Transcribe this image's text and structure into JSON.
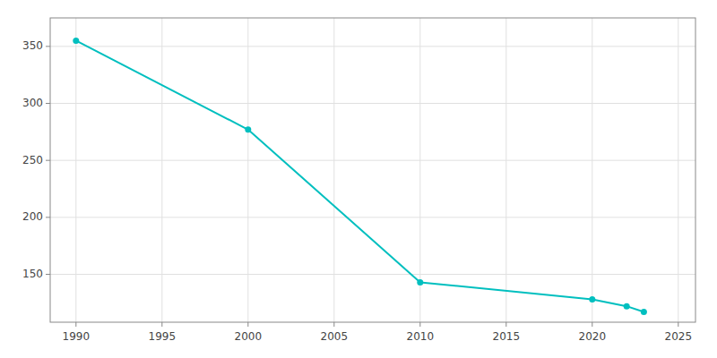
{
  "chart_data": {
    "type": "line",
    "x": [
      1990,
      2000,
      2010,
      2020,
      2022,
      2023
    ],
    "values": [
      355,
      277,
      143,
      128,
      122,
      117
    ],
    "color": "#00BFBF",
    "marker": "circle",
    "xlim": [
      1988.5,
      2026
    ],
    "ylim": [
      108,
      375
    ],
    "xticks": [
      1990,
      1995,
      2000,
      2005,
      2010,
      2015,
      2020,
      2025
    ],
    "yticks": [
      150,
      200,
      250,
      300,
      350
    ],
    "grid": true
  }
}
